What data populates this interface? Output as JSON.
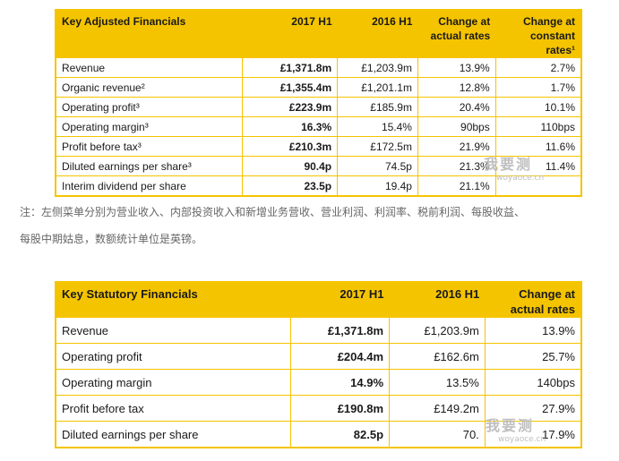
{
  "adjusted": {
    "headers": [
      "Key Adjusted Financials",
      "2017 H1",
      "2016 H1",
      "Change at actual rates",
      "Change at constant rates¹"
    ],
    "rows": [
      [
        "Revenue",
        "£1,371.8m",
        "£1,203.9m",
        "13.9%",
        "2.7%"
      ],
      [
        "Organic revenue²",
        "£1,355.4m",
        "£1,201.1m",
        "12.8%",
        "1.7%"
      ],
      [
        "Operating profit³",
        "£223.9m",
        "£185.9m",
        "20.4%",
        "10.1%"
      ],
      [
        "Operating margin³",
        "16.3%",
        "15.4%",
        "90bps",
        "110bps"
      ],
      [
        "Profit before tax³",
        "£210.3m",
        "£172.5m",
        "21.9%",
        "11.6%"
      ],
      [
        "Diluted earnings per share³",
        "90.4p",
        "74.5p",
        "21.3%",
        "11.4%"
      ],
      [
        "Interim dividend per share",
        "23.5p",
        "19.4p",
        "21.1%",
        ""
      ]
    ]
  },
  "note": {
    "line1": "注：左侧菜单分别为营业收入、内部投资收入和新增业务营收、营业利润、利润率、税前利润、每股收益、",
    "line2": "每股中期姑息，数额统计单位是英镑。"
  },
  "statutory": {
    "headers": [
      "Key Statutory Financials",
      "2017 H1",
      "2016 H1",
      "Change at actual rates"
    ],
    "rows": [
      [
        "Revenue",
        "£1,371.8m",
        "£1,203.9m",
        "13.9%"
      ],
      [
        "Operating profit",
        "£204.4m",
        "£162.6m",
        "25.7%"
      ],
      [
        "Operating margin",
        "14.9%",
        "13.5%",
        "140bps"
      ],
      [
        "Profit before tax",
        "£190.8m",
        "£149.2m",
        "27.9%"
      ],
      [
        "Diluted earnings per share",
        "82.5p",
        "70.",
        "17.9%"
      ]
    ]
  },
  "watermark": {
    "text": "我要测",
    "url": "woyaoce.cn"
  }
}
